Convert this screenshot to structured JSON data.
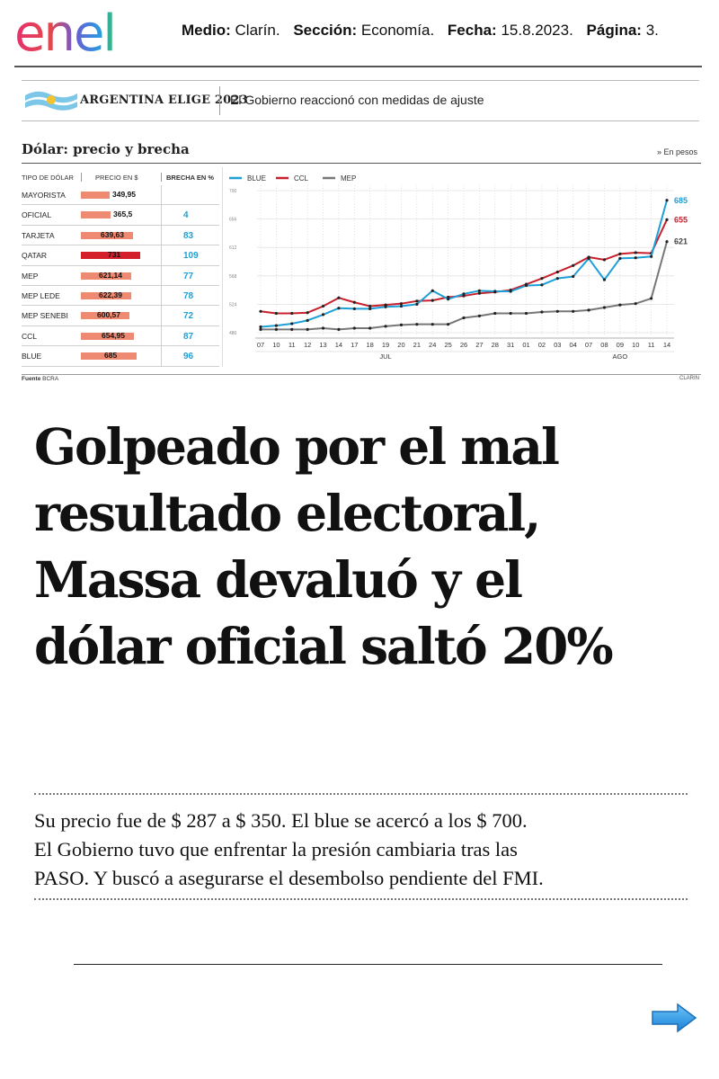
{
  "header": {
    "logo_text": "enel",
    "medio_label": "Medio:",
    "medio_value": "Clarín.",
    "seccion_label": "Sección:",
    "seccion_value": "Economía.",
    "fecha_label": "Fecha:",
    "fecha_value": "15.8.2023.",
    "pagina_label": "Página:",
    "pagina_value": "3."
  },
  "banner": {
    "section_name": "ARGENTINA ELIGE 2023",
    "section_tag": "El Gobierno reaccionó con medidas de ajuste"
  },
  "graphic": {
    "title": "Dólar: precio y brecha",
    "unit_note": "» En pesos",
    "source_label": "Fuente",
    "source_value": "BCRA",
    "credit": "CLARIN",
    "colors": {
      "blue": "#1e9fd6",
      "ccl": "#c8202c",
      "mep": "#777777",
      "bar": "#ef8a72",
      "bar_highlight": "#d4202a"
    }
  },
  "chart_data": [
    {
      "type": "bar",
      "title": "Dólar: precio y brecha",
      "columns": [
        "TIPO DE DÓLAR",
        "PRECIO EN $",
        "BRECHA EN %"
      ],
      "rows": [
        {
          "name": "MAYORISTA",
          "price": "349,95",
          "price_value": 349.95,
          "gap": "",
          "highlight": false
        },
        {
          "name": "OFICIAL",
          "price": "365,5",
          "price_value": 365.5,
          "gap": "4",
          "highlight": false
        },
        {
          "name": "TARJETA",
          "price": "639,63",
          "price_value": 639.63,
          "gap": "83",
          "highlight": false
        },
        {
          "name": "QATAR",
          "price": "731",
          "price_value": 731,
          "gap": "109",
          "highlight": true
        },
        {
          "name": "MEP",
          "price": "621,14",
          "price_value": 621.14,
          "gap": "77",
          "highlight": false
        },
        {
          "name": "MEP LEDE",
          "price": "622,39",
          "price_value": 622.39,
          "gap": "78",
          "highlight": false
        },
        {
          "name": "MEP SENEBI",
          "price": "600,57",
          "price_value": 600.57,
          "gap": "72",
          "highlight": false
        },
        {
          "name": "CCL",
          "price": "654,95",
          "price_value": 654.95,
          "gap": "87",
          "highlight": false
        },
        {
          "name": "BLUE",
          "price": "685",
          "price_value": 685,
          "gap": "96",
          "highlight": false
        }
      ],
      "price_max": 731
    },
    {
      "type": "line",
      "x": [
        "07",
        "10",
        "11",
        "12",
        "13",
        "14",
        "17",
        "18",
        "19",
        "20",
        "21",
        "24",
        "25",
        "26",
        "27",
        "28",
        "31",
        "01",
        "02",
        "03",
        "04",
        "07",
        "08",
        "09",
        "10",
        "11",
        "14"
      ],
      "months": [
        {
          "label": "JUL",
          "at_index": 8
        },
        {
          "label": "AGO",
          "at_index": 23
        }
      ],
      "ylim": [
        480,
        700
      ],
      "yticks": [
        480,
        524,
        568,
        612,
        656,
        700
      ],
      "series": [
        {
          "name": "BLUE",
          "color": "#1e9fd6",
          "end_label": "685",
          "values": [
            489,
            491,
            494,
            499,
            508,
            518,
            517,
            517,
            520,
            521,
            524,
            545,
            532,
            540,
            545,
            544,
            544,
            553,
            554,
            564,
            567,
            595,
            562,
            595,
            596,
            598,
            685
          ]
        },
        {
          "name": "CCL",
          "color": "#c8202c",
          "end_label": "655",
          "values": [
            513,
            510,
            510,
            511,
            521,
            534,
            527,
            521,
            523,
            525,
            529,
            530,
            535,
            537,
            541,
            543,
            546,
            555,
            564,
            574,
            584,
            597,
            593,
            602,
            604,
            603,
            655
          ]
        },
        {
          "name": "MEP",
          "color": "#777777",
          "end_label": "621",
          "values": [
            485,
            485,
            485,
            485,
            487,
            485,
            487,
            487,
            490,
            492,
            493,
            493,
            493,
            503,
            506,
            510,
            510,
            510,
            512,
            513,
            513,
            515,
            519,
            523,
            525,
            533,
            621
          ]
        }
      ]
    }
  ],
  "article": {
    "headline_lines": [
      "Golpeado por el mal",
      "resultado electoral,",
      "Massa devaluó y el",
      "dólar oficial saltó 20%"
    ],
    "deck_lines": [
      "Su precio fue de $ 287 a $ 350. El blue se acercó a los $ 700.",
      "El Gobierno tuvo que enfrentar la presión cambiaria tras las",
      "PASO. Y buscó a asegurarse el desembolso pendiente del FMI."
    ]
  },
  "navigation": {
    "next_icon": "arrow-right-icon"
  }
}
